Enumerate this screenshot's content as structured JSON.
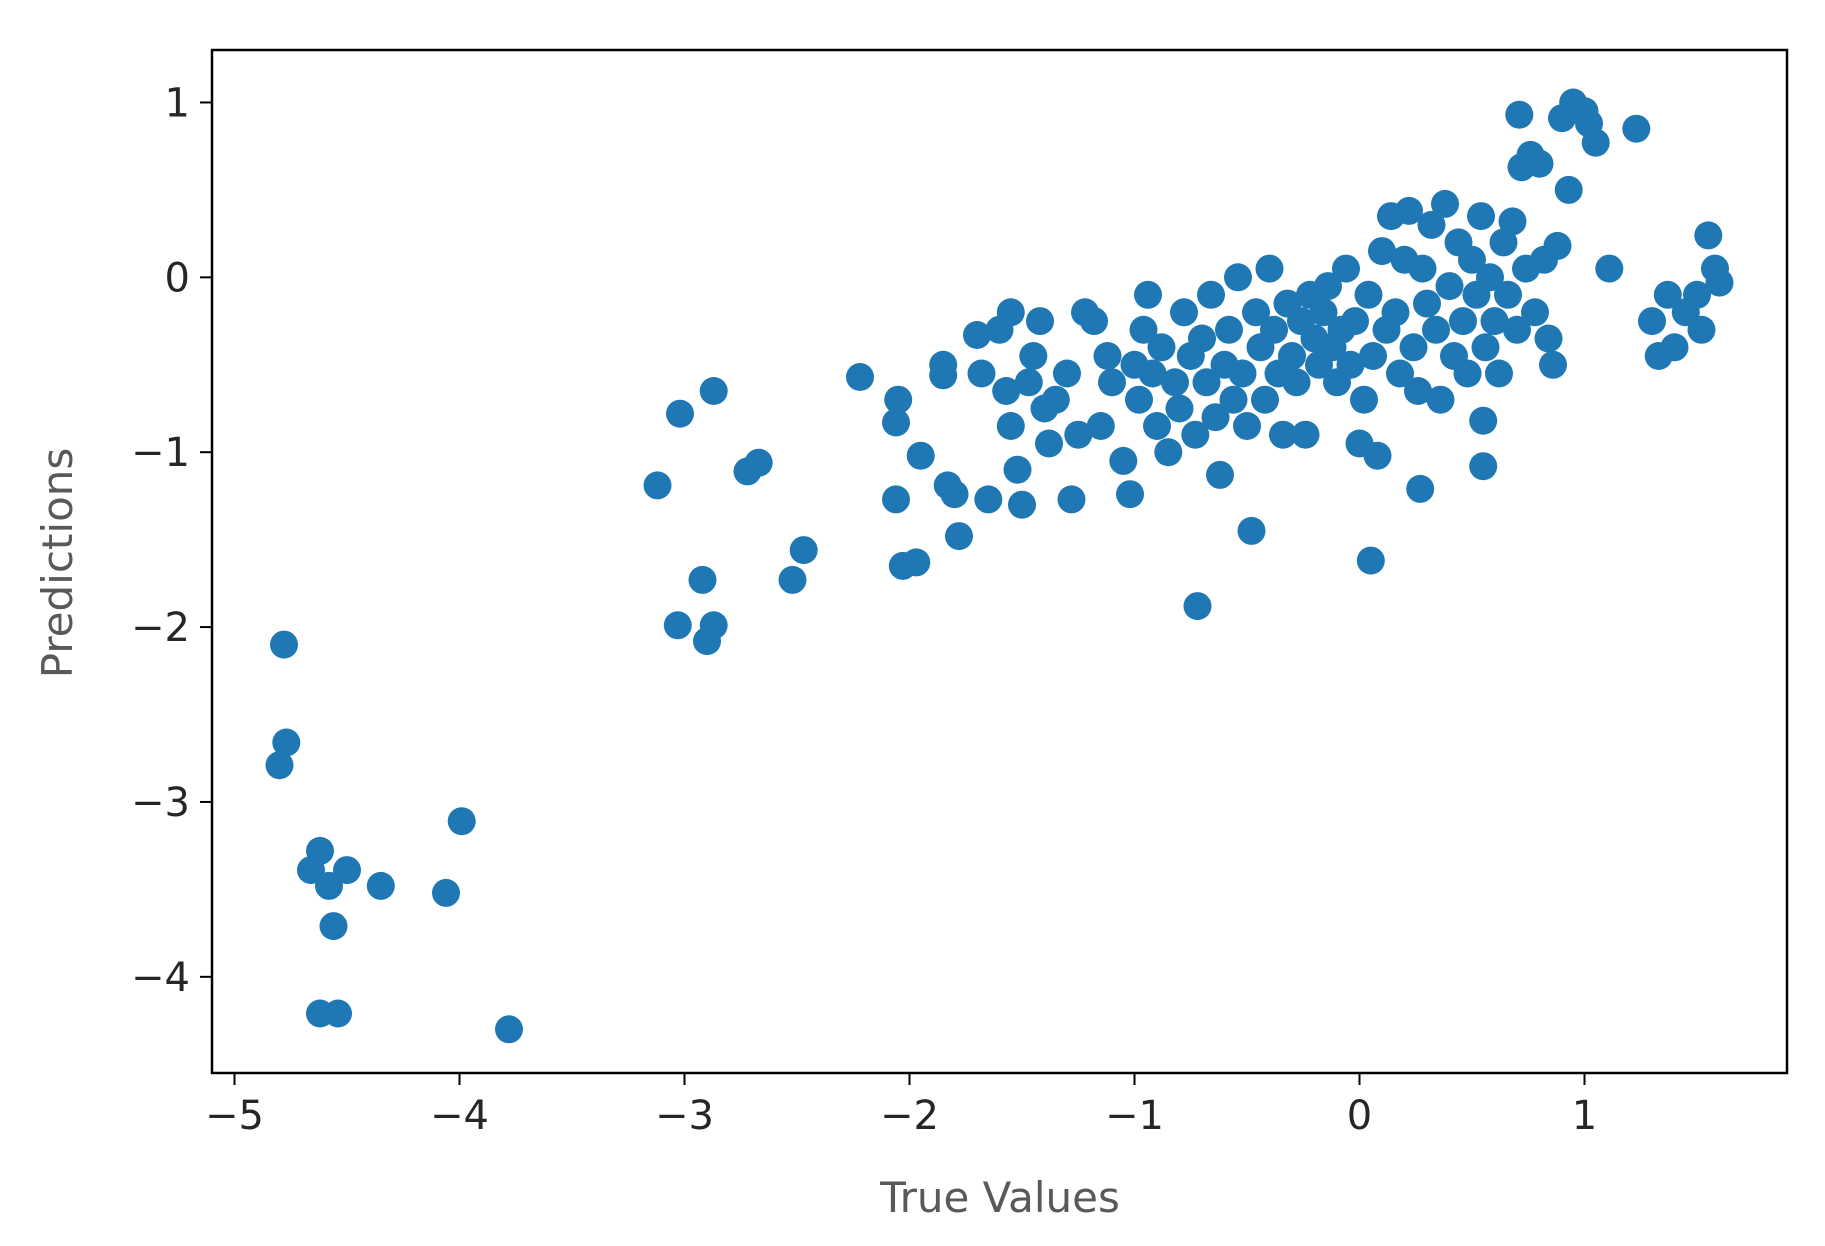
{
  "chart_data": {
    "type": "scatter",
    "title": "",
    "xlabel": "True Values",
    "ylabel": "Predictions",
    "xlim": [
      -5.1,
      1.9
    ],
    "ylim": [
      -4.55,
      1.3
    ],
    "xticks": [
      -5,
      -4,
      -3,
      -2,
      -1,
      0,
      1
    ],
    "yticks": [
      -4,
      -3,
      -2,
      -1,
      0,
      1
    ],
    "grid": false,
    "marker_color": "#1f77b4",
    "points": [
      [
        -4.78,
        -2.1
      ],
      [
        -4.77,
        -2.66
      ],
      [
        -4.8,
        -2.79
      ],
      [
        -4.62,
        -3.28
      ],
      [
        -4.66,
        -3.39
      ],
      [
        -4.58,
        -3.48
      ],
      [
        -4.5,
        -3.39
      ],
      [
        -4.35,
        -3.48
      ],
      [
        -4.56,
        -3.71
      ],
      [
        -4.62,
        -4.21
      ],
      [
        -4.54,
        -4.21
      ],
      [
        -4.06,
        -3.52
      ],
      [
        -3.99,
        -3.11
      ],
      [
        -3.78,
        -4.3
      ],
      [
        -3.12,
        -1.19
      ],
      [
        -3.02,
        -0.78
      ],
      [
        -2.87,
        -0.65
      ],
      [
        -2.92,
        -1.73
      ],
      [
        -3.03,
        -1.99
      ],
      [
        -2.9,
        -2.08
      ],
      [
        -2.87,
        -1.99
      ],
      [
        -2.72,
        -1.11
      ],
      [
        -2.67,
        -1.06
      ],
      [
        -2.52,
        -1.73
      ],
      [
        -2.47,
        -1.56
      ],
      [
        -2.22,
        -0.57
      ],
      [
        -2.05,
        -0.7
      ],
      [
        -2.06,
        -0.83
      ],
      [
        -2.06,
        -1.27
      ],
      [
        -2.03,
        -1.65
      ],
      [
        -1.97,
        -1.63
      ],
      [
        -1.95,
        -1.02
      ],
      [
        -1.85,
        -0.5
      ],
      [
        -1.85,
        -0.56
      ],
      [
        -1.83,
        -1.19
      ],
      [
        -1.8,
        -1.24
      ],
      [
        -1.78,
        -1.48
      ],
      [
        -1.7,
        -0.33
      ],
      [
        -1.68,
        -0.55
      ],
      [
        -1.65,
        -1.27
      ],
      [
        -1.6,
        -0.3
      ],
      [
        -1.55,
        -0.2
      ],
      [
        -1.57,
        -0.65
      ],
      [
        -1.55,
        -0.85
      ],
      [
        -1.52,
        -1.1
      ],
      [
        -1.5,
        -1.3
      ],
      [
        -1.47,
        -0.6
      ],
      [
        -1.45,
        -0.45
      ],
      [
        -1.42,
        -0.25
      ],
      [
        -1.4,
        -0.75
      ],
      [
        -1.38,
        -0.95
      ],
      [
        -1.35,
        -0.7
      ],
      [
        -1.3,
        -0.55
      ],
      [
        -1.28,
        -1.27
      ],
      [
        -1.25,
        -0.9
      ],
      [
        -1.22,
        -0.2
      ],
      [
        -1.18,
        -0.25
      ],
      [
        -1.15,
        -0.85
      ],
      [
        -1.12,
        -0.45
      ],
      [
        -1.1,
        -0.6
      ],
      [
        -1.05,
        -1.05
      ],
      [
        -1.02,
        -1.24
      ],
      [
        -1.0,
        -0.5
      ],
      [
        -0.98,
        -0.7
      ],
      [
        -0.96,
        -0.3
      ],
      [
        -0.94,
        -0.1
      ],
      [
        -0.92,
        -0.55
      ],
      [
        -0.9,
        -0.85
      ],
      [
        -0.88,
        -0.4
      ],
      [
        -0.85,
        -1.0
      ],
      [
        -0.82,
        -0.6
      ],
      [
        -0.8,
        -0.75
      ],
      [
        -0.78,
        -0.2
      ],
      [
        -0.75,
        -0.45
      ],
      [
        -0.73,
        -0.9
      ],
      [
        -0.72,
        -1.88
      ],
      [
        -0.7,
        -0.35
      ],
      [
        -0.68,
        -0.6
      ],
      [
        -0.66,
        -0.1
      ],
      [
        -0.64,
        -0.8
      ],
      [
        -0.62,
        -1.13
      ],
      [
        -0.6,
        -0.5
      ],
      [
        -0.58,
        -0.3
      ],
      [
        -0.56,
        -0.7
      ],
      [
        -0.54,
        0.0
      ],
      [
        -0.52,
        -0.55
      ],
      [
        -0.5,
        -0.85
      ],
      [
        -0.48,
        -1.45
      ],
      [
        -0.46,
        -0.2
      ],
      [
        -0.44,
        -0.4
      ],
      [
        -0.42,
        -0.7
      ],
      [
        -0.4,
        0.05
      ],
      [
        -0.38,
        -0.3
      ],
      [
        -0.36,
        -0.55
      ],
      [
        -0.34,
        -0.9
      ],
      [
        -0.32,
        -0.15
      ],
      [
        -0.3,
        -0.45
      ],
      [
        -0.28,
        -0.6
      ],
      [
        -0.26,
        -0.25
      ],
      [
        -0.24,
        -0.9
      ],
      [
        -0.22,
        -0.1
      ],
      [
        -0.2,
        -0.35
      ],
      [
        -0.18,
        -0.5
      ],
      [
        -0.16,
        -0.2
      ],
      [
        -0.14,
        -0.05
      ],
      [
        -0.12,
        -0.4
      ],
      [
        -0.1,
        -0.6
      ],
      [
        -0.08,
        -0.3
      ],
      [
        -0.06,
        0.05
      ],
      [
        -0.04,
        -0.5
      ],
      [
        -0.02,
        -0.25
      ],
      [
        0.0,
        -0.95
      ],
      [
        0.02,
        -0.7
      ],
      [
        0.04,
        -0.1
      ],
      [
        0.05,
        -1.62
      ],
      [
        0.06,
        -0.45
      ],
      [
        0.08,
        -1.02
      ],
      [
        0.1,
        0.15
      ],
      [
        0.12,
        -0.3
      ],
      [
        0.14,
        0.35
      ],
      [
        0.16,
        -0.2
      ],
      [
        0.18,
        -0.55
      ],
      [
        0.2,
        0.1
      ],
      [
        0.22,
        0.38
      ],
      [
        0.24,
        -0.4
      ],
      [
        0.26,
        -0.65
      ],
      [
        0.27,
        -1.21
      ],
      [
        0.28,
        0.05
      ],
      [
        0.3,
        -0.15
      ],
      [
        0.32,
        0.3
      ],
      [
        0.34,
        -0.3
      ],
      [
        0.36,
        -0.7
      ],
      [
        0.38,
        0.42
      ],
      [
        0.4,
        -0.05
      ],
      [
        0.42,
        -0.45
      ],
      [
        0.44,
        0.2
      ],
      [
        0.46,
        -0.25
      ],
      [
        0.48,
        -0.55
      ],
      [
        0.5,
        0.1
      ],
      [
        0.52,
        -0.1
      ],
      [
        0.54,
        0.35
      ],
      [
        0.55,
        -0.82
      ],
      [
        0.55,
        -1.08
      ],
      [
        0.56,
        -0.4
      ],
      [
        0.58,
        0.0
      ],
      [
        0.6,
        -0.25
      ],
      [
        0.62,
        -0.55
      ],
      [
        0.64,
        0.2
      ],
      [
        0.66,
        -0.1
      ],
      [
        0.68,
        0.32
      ],
      [
        0.7,
        -0.3
      ],
      [
        0.71,
        0.93
      ],
      [
        0.72,
        0.63
      ],
      [
        0.74,
        0.05
      ],
      [
        0.76,
        0.7
      ],
      [
        0.78,
        -0.2
      ],
      [
        0.8,
        0.65
      ],
      [
        0.82,
        0.1
      ],
      [
        0.84,
        -0.35
      ],
      [
        0.86,
        -0.5
      ],
      [
        0.88,
        0.18
      ],
      [
        0.9,
        0.91
      ],
      [
        0.93,
        0.5
      ],
      [
        0.95,
        1.0
      ],
      [
        1.0,
        0.95
      ],
      [
        1.02,
        0.88
      ],
      [
        1.05,
        0.77
      ],
      [
        1.11,
        0.05
      ],
      [
        1.23,
        0.85
      ],
      [
        1.3,
        -0.25
      ],
      [
        1.33,
        -0.45
      ],
      [
        1.37,
        -0.1
      ],
      [
        1.4,
        -0.4
      ],
      [
        1.45,
        -0.2
      ],
      [
        1.5,
        -0.1
      ],
      [
        1.52,
        -0.3
      ],
      [
        1.55,
        0.24
      ],
      [
        1.58,
        0.05
      ],
      [
        1.6,
        -0.03
      ]
    ]
  }
}
